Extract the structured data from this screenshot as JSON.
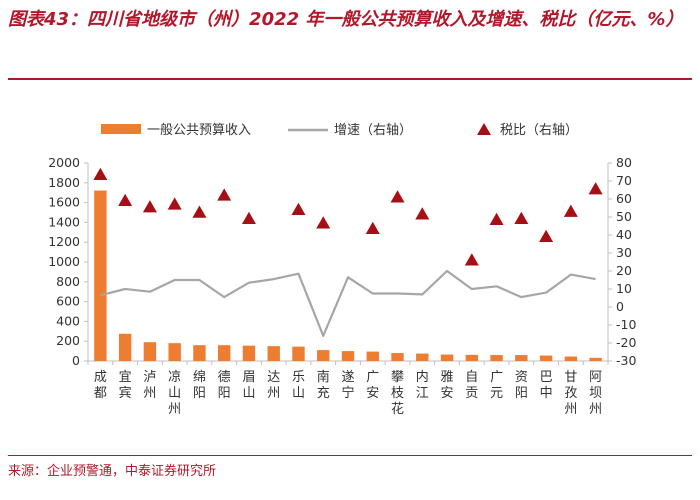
{
  "header": {
    "title": "图表43：四川省地级市（州）2022 年一般公共预算收入及增速、税比（亿元、%）"
  },
  "footer": {
    "source": "来源：企业预警通，中泰证券研究所"
  },
  "chart_data": {
    "type": "bar",
    "categories": [
      "成都",
      "宜宾",
      "泸州",
      "凉山州",
      "绵阳",
      "德阳",
      "眉山",
      "达州",
      "乐山",
      "南充",
      "遂宁",
      "广安",
      "攀枝花",
      "内江",
      "雅安",
      "自贡",
      "广元",
      "资阳",
      "巴中",
      "甘孜州",
      "阿坝州"
    ],
    "series": [
      {
        "name": "一般公共预算收入",
        "type": "bar",
        "axis": "left",
        "color": "#ed7d31",
        "values": [
          1722,
          275,
          190,
          180,
          160,
          160,
          155,
          150,
          145,
          110,
          100,
          95,
          80,
          75,
          65,
          62,
          60,
          60,
          55,
          45,
          32
        ]
      },
      {
        "name": "增速（右轴）",
        "type": "line",
        "axis": "right",
        "color": "#a6a6a6",
        "values": [
          6.5,
          10,
          8.5,
          15,
          15,
          5.5,
          13.5,
          15.5,
          18.5,
          -16,
          16.5,
          7.5,
          7.5,
          7,
          20,
          10,
          11.5,
          5.5,
          8,
          18,
          15.5
        ]
      },
      {
        "name": "税比（右轴）",
        "type": "scatter",
        "axis": "right",
        "color": "#a50f15",
        "marker": "triangle",
        "values": [
          73.5,
          59,
          55.5,
          57,
          52.5,
          62,
          49,
          null,
          54,
          46.5,
          null,
          43.5,
          61,
          51.5,
          null,
          26,
          48.5,
          49,
          39,
          53,
          65.5
        ]
      }
    ],
    "y_left": {
      "ylim": [
        0,
        2000
      ],
      "ticks": [
        "0",
        "200",
        "400",
        "600",
        "800",
        "1000",
        "1200",
        "1400",
        "1600",
        "1800",
        "2000"
      ]
    },
    "y_right": {
      "ylim": [
        -30,
        80
      ],
      "ticks": [
        "-30",
        "-20",
        "-10",
        "0",
        "10",
        "20",
        "30",
        "40",
        "50",
        "60",
        "70",
        "80"
      ]
    },
    "legend_position": "top",
    "grid": false
  }
}
